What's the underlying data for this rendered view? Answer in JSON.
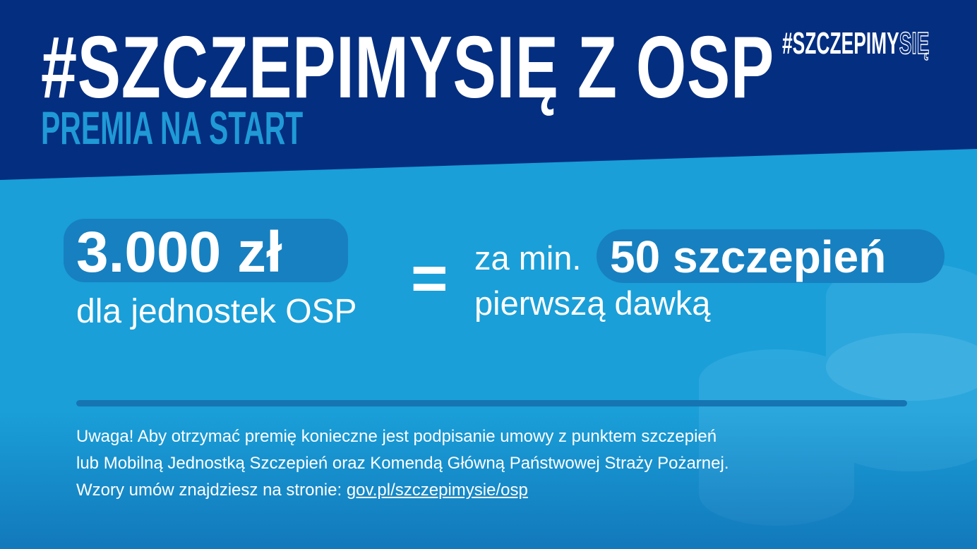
{
  "header": {
    "title": "#SZCZEPIMYSIĘ Z OSP",
    "subtitle": "PREMIA NA START",
    "brand_main": "#SZCZEPIMY",
    "brand_outline": "SIĘ"
  },
  "offer": {
    "amount": "3.000 zł",
    "amount_caption": "dla jednostek OSP",
    "equals": "=",
    "condition_prefix": "za min.",
    "condition_count": "50 szczepień",
    "condition_caption": "pierwszą dawką"
  },
  "note": {
    "line1": "Uwaga! Aby otrzymać premię konieczne jest podpisanie umowy z punktem szczepień",
    "line2": "lub Mobilną Jednostką Szczepień oraz Komendą Główną Państwowej Straży Pożarnej.",
    "line3_prefix": "Wzory umów znajdziesz na stronie: ",
    "link": "gov.pl/szczepimysie/osp"
  },
  "colors": {
    "dark_blue": "#042e80",
    "light_blue": "#1a9fd8",
    "pill": "#1780c0"
  },
  "icons": [
    "coins-stack-icon"
  ]
}
